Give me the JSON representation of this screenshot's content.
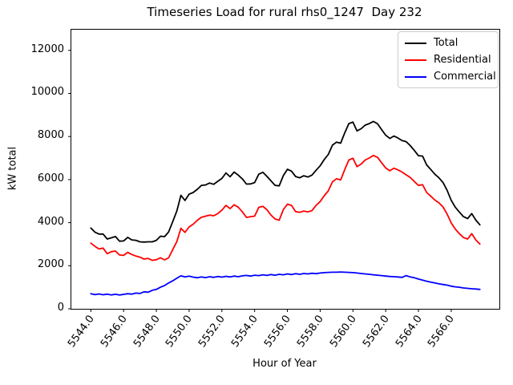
{
  "chart_data": {
    "type": "line",
    "title": "Timeseries Load for rural rhs0_1247  Day 232",
    "xlabel": "Hour of Year",
    "ylabel": "kW total",
    "grid": false,
    "legend_position": "upper right",
    "xlim": [
      5542.81,
      5568.94
    ],
    "ylim": [
      0,
      12960
    ],
    "xticks": [
      5544,
      5546,
      5548,
      5550,
      5552,
      5554,
      5556,
      5558,
      5560,
      5562,
      5564,
      5566
    ],
    "xtick_labels": [
      "5544.0",
      "5546.0",
      "5548.0",
      "5550.0",
      "5552.0",
      "5554.0",
      "5556.0",
      "5558.0",
      "5560.0",
      "5562.0",
      "5564.0",
      "5566.0"
    ],
    "yticks": [
      0,
      2000,
      4000,
      6000,
      8000,
      10000,
      12000
    ],
    "ytick_labels": [
      "0",
      "2000",
      "4000",
      "6000",
      "8000",
      "10000",
      "12000"
    ],
    "x": [
      5544,
      5544.25,
      5544.5,
      5544.75,
      5545,
      5545.25,
      5545.5,
      5545.75,
      5546,
      5546.25,
      5546.5,
      5546.75,
      5547,
      5547.25,
      5547.5,
      5547.75,
      5548,
      5548.25,
      5548.5,
      5548.75,
      5549,
      5549.25,
      5549.5,
      5549.75,
      5550,
      5550.25,
      5550.5,
      5550.75,
      5551,
      5551.25,
      5551.5,
      5551.75,
      5552,
      5552.25,
      5552.5,
      5552.75,
      5553,
      5553.25,
      5553.5,
      5553.75,
      5554,
      5554.25,
      5554.5,
      5554.75,
      5555,
      5555.25,
      5555.5,
      5555.75,
      5556,
      5556.25,
      5556.5,
      5556.75,
      5557,
      5557.25,
      5557.5,
      5557.75,
      5558,
      5558.25,
      5558.5,
      5558.75,
      5559,
      5559.25,
      5559.5,
      5559.75,
      5560,
      5560.25,
      5560.5,
      5560.75,
      5561,
      5561.25,
      5561.5,
      5561.75,
      5562,
      5562.25,
      5562.5,
      5562.75,
      5563,
      5563.25,
      5563.5,
      5563.75,
      5564,
      5564.25,
      5564.5,
      5564.75,
      5565,
      5565.25,
      5565.5,
      5565.75,
      5566,
      5566.25,
      5566.5,
      5566.75,
      5567,
      5567.25,
      5567.5,
      5567.75
    ],
    "series": [
      {
        "name": "Total",
        "color": "#000000",
        "values": [
          3750,
          3560,
          3470,
          3470,
          3240,
          3295,
          3355,
          3140,
          3150,
          3320,
          3200,
          3180,
          3110,
          3100,
          3110,
          3110,
          3180,
          3370,
          3350,
          3570,
          4050,
          4540,
          5270,
          5030,
          5320,
          5400,
          5550,
          5730,
          5750,
          5840,
          5780,
          5920,
          6050,
          6310,
          6130,
          6350,
          6210,
          6030,
          5790,
          5800,
          5860,
          6250,
          6340,
          6150,
          5940,
          5730,
          5710,
          6180,
          6480,
          6390,
          6140,
          6080,
          6180,
          6120,
          6210,
          6430,
          6640,
          6930,
          7170,
          7600,
          7740,
          7690,
          8170,
          8600,
          8670,
          8260,
          8360,
          8530,
          8600,
          8700,
          8590,
          8320,
          8060,
          7910,
          8020,
          7930,
          7810,
          7760,
          7580,
          7350,
          7110,
          7090,
          6680,
          6470,
          6250,
          6080,
          5860,
          5500,
          5040,
          4720,
          4490,
          4280,
          4190,
          4420,
          4120,
          3900
        ]
      },
      {
        "name": "Residential",
        "color": "#ff0000",
        "values": [
          3050,
          2900,
          2780,
          2820,
          2560,
          2650,
          2680,
          2500,
          2480,
          2620,
          2520,
          2450,
          2400,
          2310,
          2340,
          2250,
          2280,
          2370,
          2270,
          2370,
          2750,
          3120,
          3740,
          3550,
          3800,
          3930,
          4110,
          4250,
          4300,
          4350,
          4320,
          4420,
          4580,
          4800,
          4650,
          4830,
          4720,
          4500,
          4240,
          4280,
          4300,
          4710,
          4760,
          4600,
          4350,
          4170,
          4110,
          4600,
          4860,
          4800,
          4510,
          4480,
          4540,
          4500,
          4560,
          4800,
          4980,
          5250,
          5480,
          5900,
          6040,
          5980,
          6470,
          6910,
          6990,
          6600,
          6720,
          6910,
          7000,
          7120,
          7030,
          6780,
          6540,
          6410,
          6530,
          6450,
          6350,
          6220,
          6100,
          5910,
          5730,
          5760,
          5400,
          5230,
          5050,
          4920,
          4730,
          4400,
          3990,
          3700,
          3490,
          3310,
          3240,
          3490,
          3200,
          3000
        ]
      },
      {
        "name": "Commercial",
        "color": "#0000ff",
        "values": [
          700,
          660,
          690,
          650,
          680,
          645,
          675,
          640,
          670,
          700,
          680,
          730,
          710,
          790,
          770,
          860,
          900,
          1000,
          1080,
          1200,
          1300,
          1420,
          1530,
          1480,
          1520,
          1470,
          1440,
          1480,
          1450,
          1490,
          1460,
          1500,
          1470,
          1510,
          1480,
          1520,
          1490,
          1530,
          1550,
          1520,
          1560,
          1540,
          1580,
          1550,
          1590,
          1560,
          1600,
          1580,
          1620,
          1590,
          1630,
          1600,
          1640,
          1620,
          1650,
          1630,
          1660,
          1680,
          1690,
          1700,
          1700,
          1710,
          1700,
          1690,
          1680,
          1660,
          1640,
          1620,
          1600,
          1580,
          1560,
          1540,
          1520,
          1500,
          1490,
          1480,
          1460,
          1540,
          1480,
          1440,
          1380,
          1330,
          1280,
          1240,
          1200,
          1160,
          1130,
          1100,
          1050,
          1020,
          1000,
          970,
          950,
          930,
          920,
          900
        ]
      }
    ]
  }
}
